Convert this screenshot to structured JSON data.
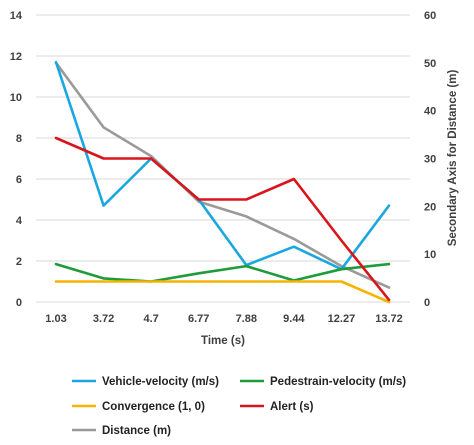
{
  "chart_data": {
    "type": "line",
    "title": "",
    "xlabel": "Time (s)",
    "ylabel": "",
    "y2label": "Secondary Axis for Distance (m)",
    "categories": [
      "1.03",
      "3.72",
      "4.7",
      "6.77",
      "7.88",
      "9.44",
      "12.27",
      "13.72"
    ],
    "ylim": [
      0,
      14
    ],
    "y2lim": [
      0,
      60
    ],
    "yticks": [
      "0",
      "2",
      "4",
      "6",
      "8",
      "10",
      "12",
      "14"
    ],
    "y2ticks": [
      "0",
      "10",
      "20",
      "30",
      "40",
      "50",
      "60"
    ],
    "grid": true,
    "legend_position": "bottom",
    "series": [
      {
        "name": "Vehicle-velocity (m/s)",
        "axis": "primary",
        "color": "#1AA7E0",
        "values": [
          11.7,
          4.7,
          7.0,
          5.0,
          1.8,
          2.7,
          1.6,
          4.7
        ]
      },
      {
        "name": "Pedestrain-velocity (m/s)",
        "axis": "primary",
        "color": "#1E9C3A",
        "values": [
          1.85,
          1.15,
          1.0,
          1.4,
          1.75,
          1.05,
          1.6,
          1.85
        ]
      },
      {
        "name": "Convergence (1, 0)",
        "axis": "primary",
        "color": "#F4B400",
        "values": [
          1,
          1,
          1,
          1,
          1,
          1,
          1,
          0
        ]
      },
      {
        "name": "Alert (s)",
        "axis": "primary",
        "color": "#D9151B",
        "values": [
          8.0,
          7.0,
          7.0,
          5.0,
          5.0,
          6.0,
          3.0,
          0.1
        ]
      },
      {
        "name": "Distance (m)",
        "axis": "secondary",
        "color": "#9A9A9A",
        "values": [
          50,
          36.5,
          30.5,
          21,
          17.9,
          13.2,
          7.5,
          3
        ]
      }
    ]
  }
}
